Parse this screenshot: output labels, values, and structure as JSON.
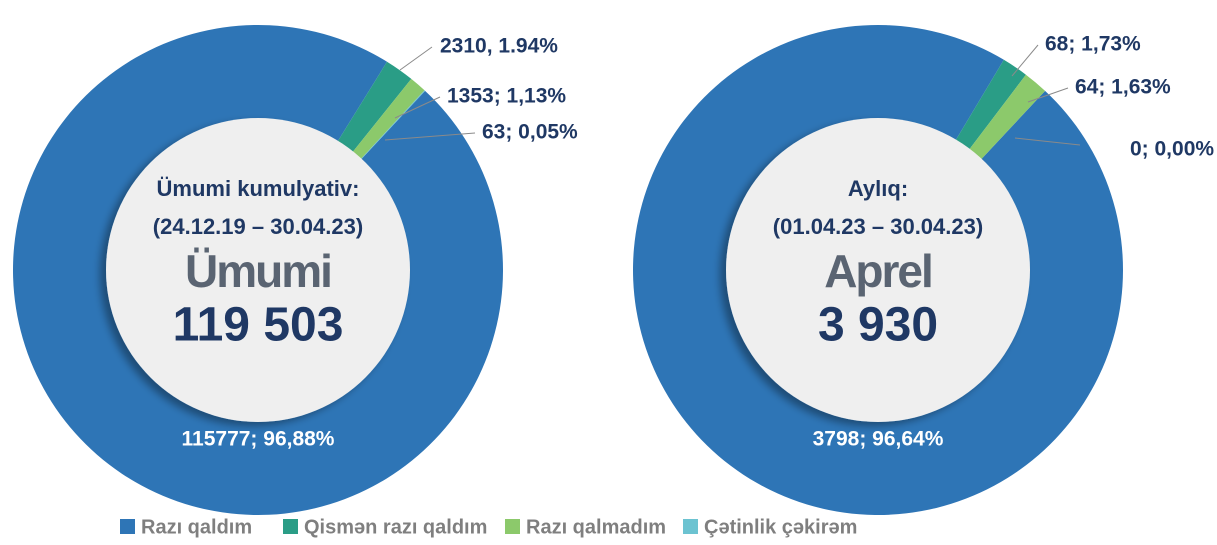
{
  "chart_data": [
    {
      "type": "donut",
      "center_text": [
        "Ümumi kumulyativ:",
        "(24.12.19 – 30.04.23)",
        "Ümumi",
        "119 503"
      ],
      "categories": [
        "Razı qaldım",
        "Qismən razı qaldım",
        "Razı qalmadım",
        "Çətinlik çəkirəm"
      ],
      "colors": [
        "#2e75b6",
        "#2a9d86",
        "#8cc96b",
        "#6cc3d1"
      ],
      "values": [
        115777,
        2310,
        1353,
        63
      ],
      "value_labels": [
        "115777; 96,88%",
        "2310, 1.94%",
        "1353; 1,13%",
        "63; 0,05%"
      ]
    },
    {
      "type": "donut",
      "center_text": [
        "Aylıq:",
        "(01.04.23 – 30.04.23)",
        "Aprel",
        "3 930"
      ],
      "categories": [
        "Razı qaldım",
        "Qismən razı qaldım",
        "Razı qalmadım",
        "Çətinlik çəkirəm"
      ],
      "colors": [
        "#2e75b6",
        "#2a9d86",
        "#8cc96b",
        "#6cc3d1"
      ],
      "values": [
        3798,
        68,
        64,
        0
      ],
      "value_labels": [
        "3798; 96,64%",
        "68; 1,73%",
        "64; 1,63%",
        "0; 0,00%"
      ]
    }
  ]
}
